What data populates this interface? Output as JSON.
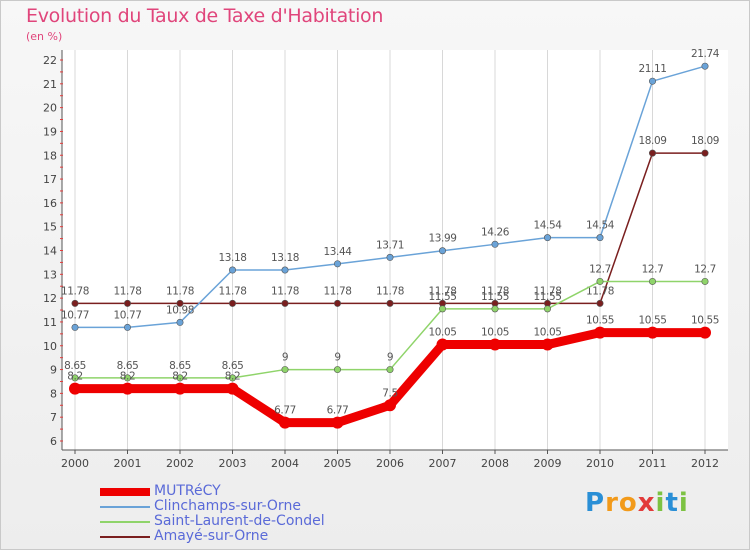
{
  "title": "Evolution du Taux de Taxe d'Habitation",
  "subtitle": "(en %)",
  "logo": {
    "letters": [
      "P",
      "r",
      "o",
      "x",
      "i",
      "t",
      "i"
    ],
    "colors": [
      "#2a8fd6",
      "#f29a1a",
      "#f29a1a",
      "#e23b3b",
      "#7cc242",
      "#2a8fd6",
      "#7cc242"
    ]
  },
  "chart_data": {
    "type": "line",
    "x": [
      "2000",
      "2001",
      "2002",
      "2003",
      "2004",
      "2005",
      "2006",
      "2007",
      "2008",
      "2009",
      "2010",
      "2011",
      "2012"
    ],
    "yticks": [
      "6",
      "7",
      "8",
      "9",
      "10",
      "11",
      "12",
      "13",
      "14",
      "15",
      "16",
      "17",
      "18",
      "19",
      "20",
      "21",
      "22"
    ],
    "ylim": [
      6,
      22
    ],
    "grid": "vertical",
    "legend": "bottom-left",
    "series": [
      {
        "name": "Amayé-sur-Orne",
        "color": "#7a1f1f",
        "values": [
          11.78,
          11.78,
          11.78,
          11.78,
          11.78,
          11.78,
          11.78,
          11.78,
          11.78,
          11.78,
          11.78,
          18.09,
          18.09
        ],
        "labels": [
          "11.78",
          "11.78",
          "11.78",
          "11.78",
          "11.78",
          "11.78",
          "11.78",
          "11.78",
          "11.78",
          "11.78",
          "11.78",
          "18.09",
          "18.09"
        ]
      },
      {
        "name": "Saint-Laurent-de-Condel",
        "color": "#8fd46a",
        "values": [
          8.65,
          8.65,
          8.65,
          8.65,
          9,
          9,
          9,
          11.55,
          11.55,
          11.55,
          12.7,
          12.7,
          12.7
        ],
        "labels": [
          "8.65",
          "8.65",
          "8.65",
          "8.65",
          "9",
          "9",
          "9",
          "11.55",
          "11.55",
          "11.55",
          "12.7",
          "12.7",
          "12.7"
        ]
      },
      {
        "name": "Clinchamps-sur-Orne",
        "color": "#6aa3d8",
        "values": [
          10.77,
          10.77,
          10.98,
          13.18,
          13.18,
          13.44,
          13.71,
          13.99,
          14.26,
          14.54,
          14.54,
          21.11,
          21.74
        ],
        "labels": [
          "10.77",
          "10.77",
          "10.98",
          "13.18",
          "13.18",
          "13.44",
          "13.71",
          "13.99",
          "14.26",
          "14.54",
          "14.54",
          "21.11",
          "21.74"
        ]
      },
      {
        "name": "MUTRéCY",
        "color": "#ee0000",
        "values": [
          8.2,
          8.2,
          8.2,
          8.2,
          6.77,
          6.77,
          7.5,
          10.05,
          10.05,
          10.05,
          10.55,
          10.55,
          10.55
        ],
        "labels": [
          "8.2",
          "8.2",
          "8.2",
          "8.2",
          "6.77",
          "6.77",
          "7.5",
          "10.05",
          "10.05",
          "10.05",
          "10.55",
          "10.55",
          "10.55"
        ]
      }
    ],
    "legend_order": [
      "MUTRéCY",
      "Clinchamps-sur-Orne",
      "Saint-Laurent-de-Condel",
      "Amayé-sur-Orne"
    ]
  }
}
